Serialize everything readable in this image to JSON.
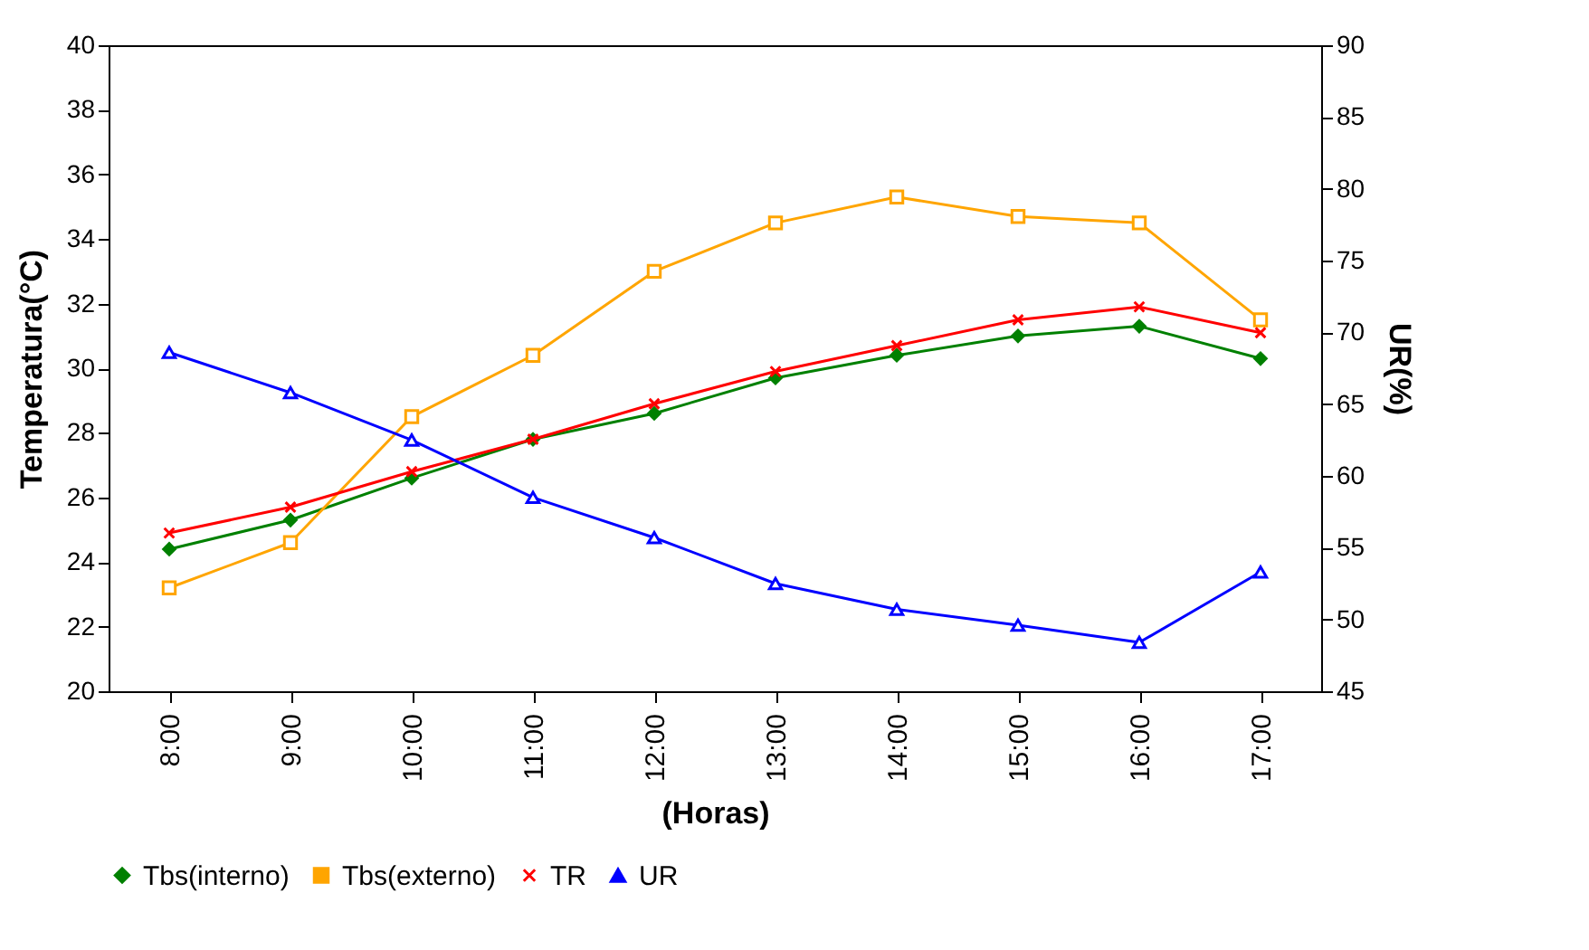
{
  "chart_data": {
    "type": "line",
    "xlabel": "(Horas)",
    "ylabel": "Temperatura(°C)",
    "y2label": "UR(%)",
    "categories": [
      "8:00",
      "9:00",
      "10:00",
      "11:00",
      "12:00",
      "13:00",
      "14:00",
      "15:00",
      "16:00",
      "17:00"
    ],
    "ylim": [
      20,
      40
    ],
    "yticks": [
      20,
      22,
      24,
      26,
      28,
      30,
      32,
      34,
      36,
      38,
      40
    ],
    "y2lim": [
      45,
      90
    ],
    "y2ticks": [
      45,
      50,
      55,
      60,
      65,
      70,
      75,
      80,
      85,
      90
    ],
    "legend": "bottom",
    "series": [
      {
        "name": "Tbs(interno)",
        "color": "#008000",
        "marker": "diamond",
        "values": [
          24.4,
          25.3,
          26.6,
          27.8,
          28.6,
          29.7,
          30.4,
          31.0,
          31.3,
          30.3
        ]
      },
      {
        "name": "Tbs(externo)",
        "color": "#ffa500",
        "marker": "square",
        "values": [
          23.2,
          24.6,
          28.5,
          30.4,
          33.0,
          34.5,
          35.3,
          34.7,
          34.5,
          31.5
        ]
      },
      {
        "name": "TR",
        "color": "#ff0000",
        "marker": "cross",
        "values": [
          24.9,
          25.7,
          26.8,
          27.8,
          28.9,
          29.9,
          30.7,
          31.5,
          31.9,
          31.1
        ]
      },
      {
        "name": "UR",
        "color": "#0000ff",
        "marker": "triangle",
        "axis": "y2",
        "values": [
          68.6,
          65.8,
          62.5,
          58.5,
          55.7,
          52.5,
          50.7,
          49.6,
          48.4,
          53.3
        ]
      }
    ]
  }
}
